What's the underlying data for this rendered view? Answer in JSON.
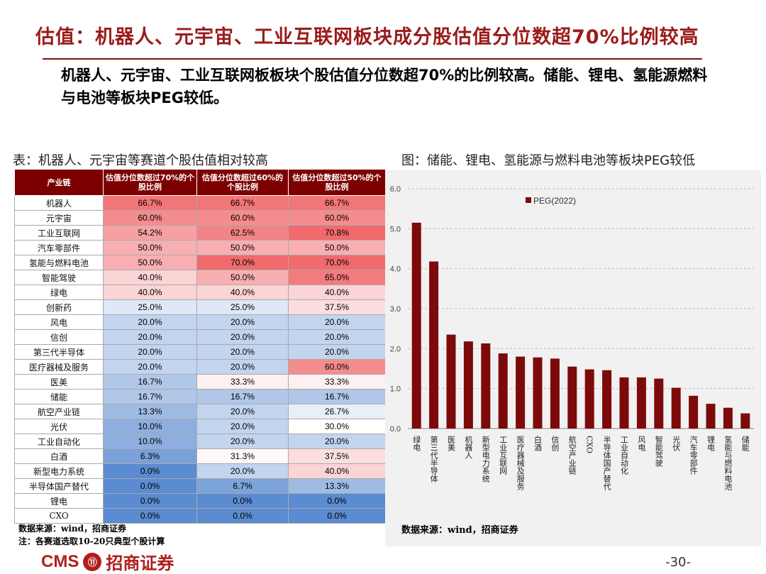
{
  "title": "估值：机器人、元宇宙、工业互联网板块成分股估值分位数超70%比例较高",
  "summary": "机器人、元宇宙、工业互联网板板块个股估值分位数超70%的比例较高。储能、锂电、氢能源燃料与电池等板块PEG较低。",
  "table": {
    "title": "表：机器人、元宇宙等赛道个股估值相对较高",
    "headers": [
      "产业链",
      "估值分位数超过70%的个股比例",
      "估值分位数超过60%的个股比例",
      "估值分位数超过50%的个股比例"
    ],
    "rows": [
      [
        "机器人",
        "66.7%",
        "66.7%",
        "66.7%"
      ],
      [
        "元宇宙",
        "60.0%",
        "60.0%",
        "60.0%"
      ],
      [
        "工业互联网",
        "54.2%",
        "62.5%",
        "70.8%"
      ],
      [
        "汽车零部件",
        "50.0%",
        "50.0%",
        "50.0%"
      ],
      [
        "氢能与燃料电池",
        "50.0%",
        "70.0%",
        "70.0%"
      ],
      [
        "智能驾驶",
        "40.0%",
        "50.0%",
        "65.0%"
      ],
      [
        "绿电",
        "40.0%",
        "40.0%",
        "40.0%"
      ],
      [
        "创新药",
        "25.0%",
        "25.0%",
        "37.5%"
      ],
      [
        "风电",
        "20.0%",
        "20.0%",
        "20.0%"
      ],
      [
        "信创",
        "20.0%",
        "20.0%",
        "20.0%"
      ],
      [
        "第三代半导体",
        "20.0%",
        "20.0%",
        "20.0%"
      ],
      [
        "医疗器械及服务",
        "20.0%",
        "20.0%",
        "60.0%"
      ],
      [
        "医美",
        "16.7%",
        "33.3%",
        "33.3%"
      ],
      [
        "储能",
        "16.7%",
        "16.7%",
        "16.7%"
      ],
      [
        "航空产业链",
        "13.3%",
        "20.0%",
        "26.7%"
      ],
      [
        "光伏",
        "10.0%",
        "20.0%",
        "30.0%"
      ],
      [
        "工业自动化",
        "10.0%",
        "20.0%",
        "20.0%"
      ],
      [
        "白酒",
        "6.3%",
        "31.3%",
        "37.5%"
      ],
      [
        "新型电力系统",
        "0.0%",
        "20.0%",
        "40.0%"
      ],
      [
        "半导体国产替代",
        "0.0%",
        "6.7%",
        "13.3%"
      ],
      [
        "锂电",
        "0.0%",
        "0.0%",
        "0.0%"
      ],
      [
        "CXO",
        "0.0%",
        "0.0%",
        "0.0%"
      ]
    ],
    "source": "数据来源：wind，招商证券",
    "note": "注：各赛道选取10-20只典型个股计算"
  },
  "colors": {
    "title_red": "#9b1b1b",
    "header_bg": "#7d0000",
    "bar": "#7d0a0a",
    "heat_high": "#f16a6d",
    "heat_mid": "#ffffff",
    "heat_low": "#5b8bd0"
  },
  "chart_data": {
    "type": "bar",
    "title": "图：储能、锂电、氢能源与燃料电池等板块PEG较低",
    "legend": "PEG(2022)",
    "legend_position": "top-right",
    "categories": [
      "绿电",
      "第三代半导体",
      "医美",
      "机器人",
      "新型电力系统",
      "工业互联网",
      "医疗器械及服务",
      "白酒",
      "信创",
      "航空产业链",
      "CXO",
      "半导体国产替代",
      "工业自动化",
      "风电",
      "智能驾驶",
      "光伏",
      "汽车零部件",
      "锂电",
      "氢能与燃料电池",
      "储能"
    ],
    "values": [
      5.15,
      4.18,
      2.35,
      2.18,
      2.13,
      1.88,
      1.8,
      1.78,
      1.75,
      1.55,
      1.48,
      1.46,
      1.28,
      1.28,
      1.25,
      1.02,
      0.82,
      0.62,
      0.52,
      0.38
    ],
    "ylim": [
      0,
      6
    ],
    "yticks": [
      "0.0",
      "1.0",
      "2.0",
      "3.0",
      "4.0",
      "5.0",
      "6.0"
    ],
    "grid": "dashed horizontal",
    "source": "数据来源：wind，招商证券"
  },
  "footer": {
    "logo_en": "CMS",
    "logo_badge": "⑪",
    "logo_cn": "招商证券",
    "page": "-30-"
  }
}
